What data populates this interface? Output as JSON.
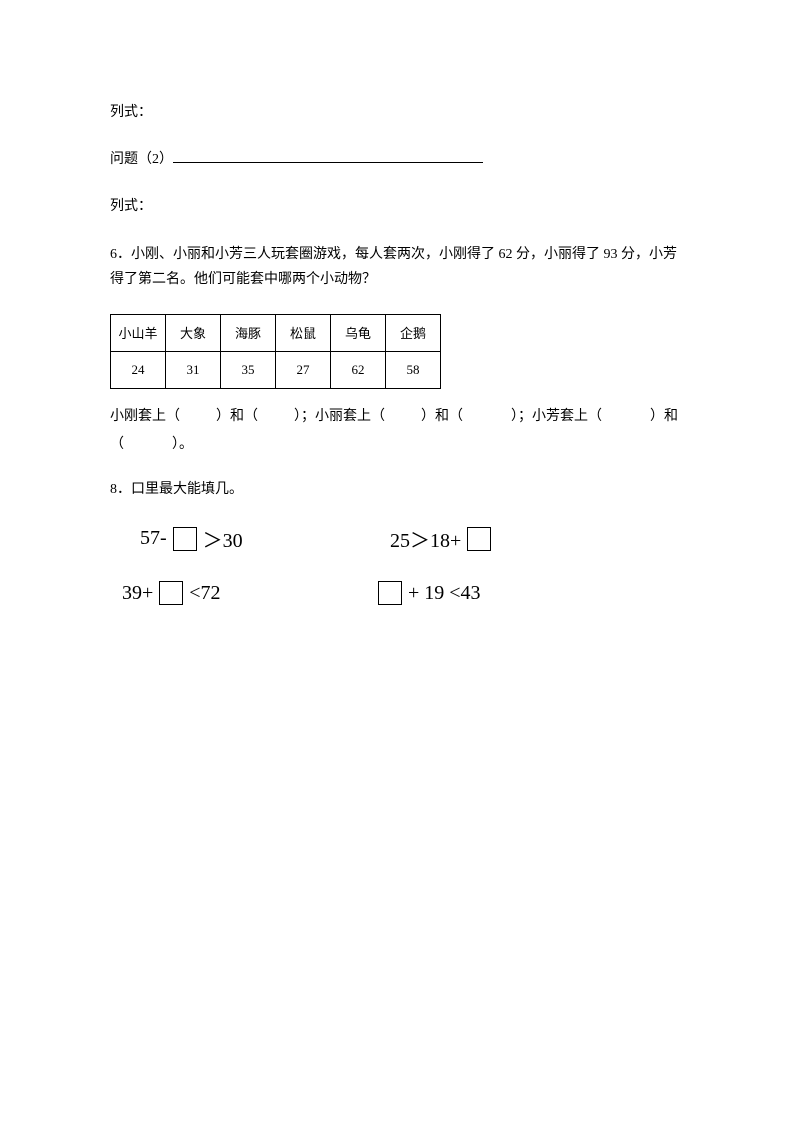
{
  "intro": {
    "lieshi1": "列式：",
    "wenti2_prefix": "问题（2）",
    "lieshi2": "列式："
  },
  "q6": {
    "prompt": "6．小刚、小丽和小芳三人玩套圈游戏，每人套两次，小刚得了 62 分，小丽得了 93 分，小芳得了第二名。他们可能套中哪两个小动物？",
    "table": {
      "headers": [
        "小山羊",
        "大象",
        "海豚",
        "松鼠",
        "乌龟",
        "企鹅"
      ],
      "values": [
        "24",
        "31",
        "35",
        "27",
        "62",
        "58"
      ]
    },
    "fill": {
      "p1a": "小刚套上（",
      "p1b": "）和（",
      "p1c": "）；小丽套上（",
      "p1d": "）和（",
      "p1e": "）；小芳套上（",
      "p1f": "）和",
      "p2a": "（",
      "p2b": "）。"
    }
  },
  "q8": {
    "prompt": "8．口里最大能填几。",
    "eq1_left_a": "57-",
    "eq1_left_b": "＞30",
    "eq1_right_a": "25＞18+",
    "eq2_left_a": "39+",
    "eq2_left_b": " <72",
    "eq2_right_b": " + 19 <43"
  }
}
